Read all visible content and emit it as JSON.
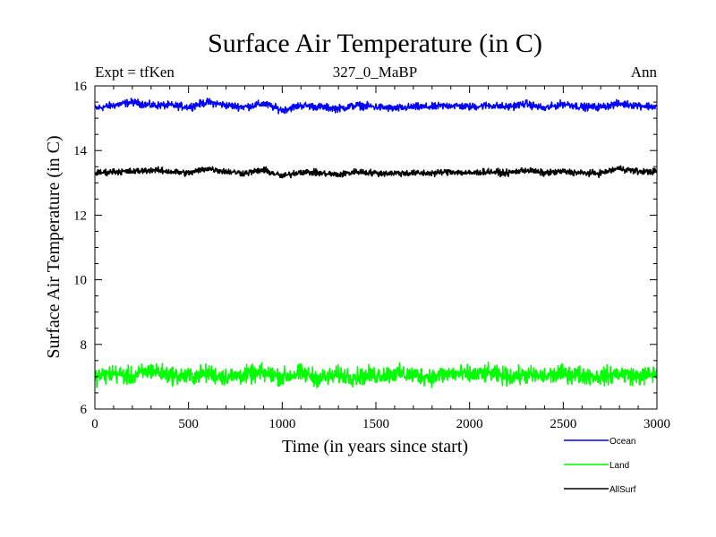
{
  "chart_data": {
    "type": "line",
    "title": "Surface Air Temperature (in C)",
    "subtitle_left": "Expt = tfKen",
    "subtitle_center": "327_0_MaBP",
    "subtitle_right": "Ann",
    "xlabel": "Time (in years since start)",
    "ylabel": "Surface Air Temperature (in C)",
    "xlim": [
      0,
      3000
    ],
    "ylim": [
      6,
      16
    ],
    "xticks": [
      0,
      500,
      1000,
      1500,
      2000,
      2500,
      3000
    ],
    "yticks": [
      6,
      8,
      10,
      12,
      14,
      16
    ],
    "grid": false,
    "legend_position": "bottom-right",
    "series": [
      {
        "name": "Ocean",
        "color": "#0000ff",
        "x": [
          0,
          100,
          200,
          300,
          400,
          500,
          600,
          700,
          800,
          900,
          1000,
          1100,
          1200,
          1300,
          1400,
          1500,
          1600,
          1700,
          1800,
          1900,
          2000,
          2100,
          2200,
          2300,
          2400,
          2500,
          2600,
          2700,
          2800,
          2900,
          3000
        ],
        "values": [
          15.3,
          15.4,
          15.5,
          15.4,
          15.4,
          15.35,
          15.5,
          15.4,
          15.35,
          15.45,
          15.25,
          15.4,
          15.35,
          15.3,
          15.4,
          15.35,
          15.3,
          15.35,
          15.35,
          15.4,
          15.35,
          15.4,
          15.35,
          15.45,
          15.3,
          15.45,
          15.35,
          15.35,
          15.45,
          15.4,
          15.35
        ]
      },
      {
        "name": "Land",
        "color": "#00ff00",
        "x": [
          0,
          100,
          200,
          300,
          400,
          500,
          600,
          700,
          800,
          900,
          1000,
          1100,
          1200,
          1300,
          1400,
          1500,
          1600,
          1700,
          1800,
          1900,
          2000,
          2100,
          2200,
          2300,
          2400,
          2500,
          2600,
          2700,
          2800,
          2900,
          3000
        ],
        "values": [
          7.0,
          7.1,
          7.0,
          7.2,
          7.05,
          7.0,
          7.1,
          7.0,
          7.05,
          7.1,
          7.0,
          7.1,
          6.95,
          7.05,
          7.0,
          7.05,
          7.1,
          7.05,
          7.0,
          7.1,
          7.05,
          7.1,
          7.0,
          7.05,
          7.0,
          7.1,
          7.05,
          7.0,
          7.1,
          7.0,
          7.1
        ]
      },
      {
        "name": "AllSurf",
        "color": "#000000",
        "x": [
          0,
          100,
          200,
          300,
          400,
          500,
          600,
          700,
          800,
          900,
          1000,
          1100,
          1200,
          1300,
          1400,
          1500,
          1600,
          1700,
          1800,
          1900,
          2000,
          2100,
          2200,
          2300,
          2400,
          2500,
          2600,
          2700,
          2800,
          2900,
          3000
        ],
        "values": [
          13.3,
          13.35,
          13.35,
          13.4,
          13.35,
          13.3,
          13.45,
          13.35,
          13.3,
          13.4,
          13.2,
          13.35,
          13.3,
          13.25,
          13.35,
          13.3,
          13.3,
          13.3,
          13.3,
          13.35,
          13.3,
          13.35,
          13.3,
          13.4,
          13.3,
          13.35,
          13.3,
          13.3,
          13.45,
          13.35,
          13.35
        ]
      }
    ]
  }
}
